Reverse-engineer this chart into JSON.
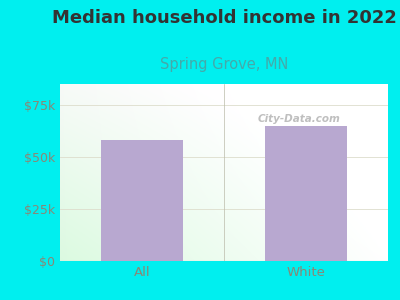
{
  "title": "Median household income in 2022",
  "subtitle": "Spring Grove, MN",
  "categories": [
    "All",
    "White"
  ],
  "values": [
    58000,
    65000
  ],
  "bar_color": "#b8a8d0",
  "background_color": "#00EFEF",
  "title_fontsize": 13,
  "subtitle_fontsize": 10.5,
  "yticks": [
    0,
    25000,
    50000,
    75000
  ],
  "ytick_labels": [
    "$0",
    "$25k",
    "$50k",
    "$75k"
  ],
  "ylim": [
    0,
    85000
  ],
  "tick_color": "#888877",
  "subtitle_color": "#44aaaa",
  "title_color": "#333333",
  "watermark": "City-Data.com",
  "grid_color": "#ddddcc"
}
